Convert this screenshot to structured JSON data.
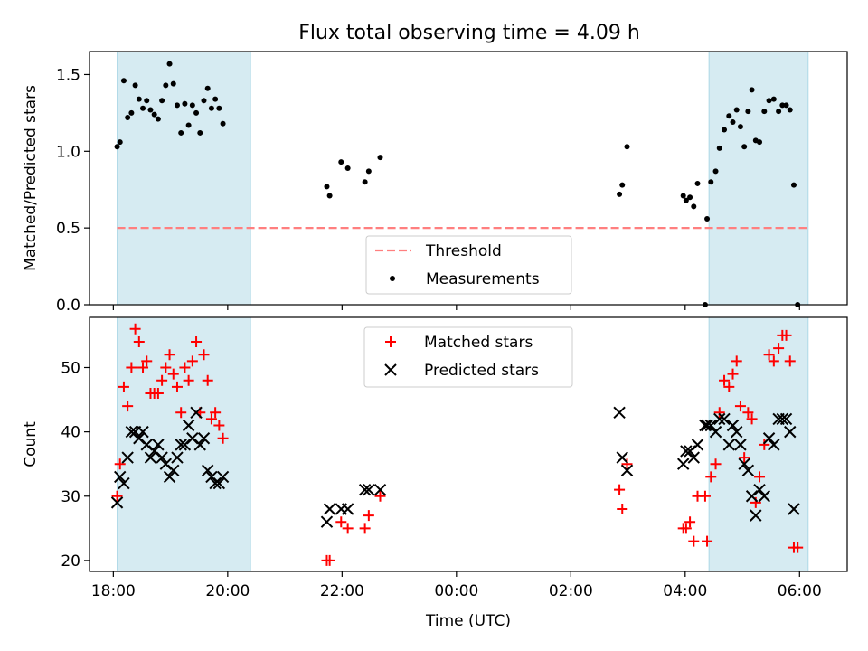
{
  "title": "Flux total observing time = 4.09 h",
  "colors": {
    "shade": "#add8e6",
    "threshold": "#ff7f7f",
    "measurement": "#000000",
    "matched": "#ff0000",
    "predicted": "#000000"
  },
  "chart_data": [
    {
      "type": "scatter",
      "ylabel": "Matched/Predicted stars",
      "ylim": [
        0,
        1.65
      ],
      "yticks": [
        "0.0",
        "0.5",
        "1.0",
        "1.5"
      ],
      "xlim": [
        "17:35",
        "06:50"
      ],
      "grid": false,
      "shaded_intervals": [
        [
          "18:04",
          "20:24"
        ],
        [
          "04:25",
          "06:09"
        ]
      ],
      "legend": {
        "position": "lower-center",
        "entries": [
          "Threshold",
          "Measurements"
        ]
      },
      "threshold": {
        "name": "Threshold",
        "value": 0.5,
        "x_range": [
          "18:04",
          "06:09"
        ],
        "style": "dashed"
      },
      "series": [
        {
          "name": "Measurements",
          "marker": "dot",
          "points": [
            [
              "18:04",
              1.03
            ],
            [
              "18:07",
              1.06
            ],
            [
              "18:11",
              1.46
            ],
            [
              "18:15",
              1.22
            ],
            [
              "18:19",
              1.25
            ],
            [
              "18:23",
              1.43
            ],
            [
              "18:27",
              1.34
            ],
            [
              "18:31",
              1.28
            ],
            [
              "18:35",
              1.33
            ],
            [
              "18:39",
              1.27
            ],
            [
              "18:43",
              1.24
            ],
            [
              "18:47",
              1.21
            ],
            [
              "18:51",
              1.33
            ],
            [
              "18:55",
              1.43
            ],
            [
              "18:59",
              1.57
            ],
            [
              "19:03",
              1.44
            ],
            [
              "19:07",
              1.3
            ],
            [
              "19:11",
              1.12
            ],
            [
              "19:15",
              1.31
            ],
            [
              "19:19",
              1.17
            ],
            [
              "19:23",
              1.3
            ],
            [
              "19:27",
              1.25
            ],
            [
              "19:31",
              1.12
            ],
            [
              "19:35",
              1.33
            ],
            [
              "19:39",
              1.41
            ],
            [
              "19:43",
              1.28
            ],
            [
              "19:47",
              1.34
            ],
            [
              "19:51",
              1.28
            ],
            [
              "19:55",
              1.18
            ],
            [
              "21:44",
              0.77
            ],
            [
              "21:47",
              0.71
            ],
            [
              "21:59",
              0.93
            ],
            [
              "22:06",
              0.89
            ],
            [
              "22:24",
              0.8
            ],
            [
              "22:28",
              0.87
            ],
            [
              "22:40",
              0.96
            ],
            [
              "02:51",
              0.72
            ],
            [
              "02:54",
              0.78
            ],
            [
              "02:59",
              1.03
            ],
            [
              "03:58",
              0.71
            ],
            [
              "04:01",
              0.68
            ],
            [
              "04:05",
              0.7
            ],
            [
              "04:09",
              0.64
            ],
            [
              "04:13",
              0.79
            ],
            [
              "04:21",
              0.0
            ],
            [
              "04:23",
              0.56
            ],
            [
              "04:27",
              0.8
            ],
            [
              "04:32",
              0.87
            ],
            [
              "04:36",
              1.02
            ],
            [
              "04:41",
              1.14
            ],
            [
              "04:46",
              1.23
            ],
            [
              "04:50",
              1.19
            ],
            [
              "04:54",
              1.27
            ],
            [
              "04:58",
              1.16
            ],
            [
              "05:02",
              1.03
            ],
            [
              "05:06",
              1.26
            ],
            [
              "05:10",
              1.4
            ],
            [
              "05:14",
              1.07
            ],
            [
              "05:18",
              1.06
            ],
            [
              "05:23",
              1.26
            ],
            [
              "05:28",
              1.33
            ],
            [
              "05:33",
              1.34
            ],
            [
              "05:38",
              1.26
            ],
            [
              "05:42",
              1.3
            ],
            [
              "05:46",
              1.3
            ],
            [
              "05:50",
              1.27
            ],
            [
              "05:54",
              0.78
            ],
            [
              "05:58",
              0.0
            ]
          ]
        }
      ]
    },
    {
      "type": "scatter",
      "ylabel": "Count",
      "xlabel": "Time (UTC)",
      "ylim": [
        18.3,
        57.8
      ],
      "yticks": [
        "20",
        "30",
        "40",
        "50"
      ],
      "xlim": [
        "17:35",
        "06:50"
      ],
      "xticks": [
        "18:00",
        "20:00",
        "22:00",
        "00:00",
        "02:00",
        "04:00",
        "06:00"
      ],
      "grid": false,
      "shaded_intervals": [
        [
          "18:04",
          "20:24"
        ],
        [
          "04:25",
          "06:09"
        ]
      ],
      "legend": {
        "position": "upper-center",
        "entries": [
          "Matched stars",
          "Predicted stars"
        ]
      },
      "series": [
        {
          "name": "Matched stars",
          "marker": "plus",
          "points": [
            [
              "18:04",
              30
            ],
            [
              "18:07",
              35
            ],
            [
              "18:11",
              47
            ],
            [
              "18:15",
              44
            ],
            [
              "18:19",
              50
            ],
            [
              "18:23",
              56
            ],
            [
              "18:27",
              54
            ],
            [
              "18:31",
              50
            ],
            [
              "18:35",
              51
            ],
            [
              "18:39",
              46
            ],
            [
              "18:43",
              46
            ],
            [
              "18:47",
              46
            ],
            [
              "18:51",
              48
            ],
            [
              "18:55",
              50
            ],
            [
              "18:59",
              52
            ],
            [
              "19:03",
              49
            ],
            [
              "19:07",
              47
            ],
            [
              "19:11",
              43
            ],
            [
              "19:15",
              50
            ],
            [
              "19:19",
              48
            ],
            [
              "19:23",
              51
            ],
            [
              "19:27",
              54
            ],
            [
              "19:31",
              43
            ],
            [
              "19:35",
              52
            ],
            [
              "19:39",
              48
            ],
            [
              "19:43",
              42
            ],
            [
              "19:47",
              43
            ],
            [
              "19:51",
              41
            ],
            [
              "19:55",
              39
            ],
            [
              "21:44",
              20
            ],
            [
              "21:47",
              20
            ],
            [
              "21:59",
              26
            ],
            [
              "22:06",
              25
            ],
            [
              "22:24",
              25
            ],
            [
              "22:28",
              27
            ],
            [
              "22:40",
              30
            ],
            [
              "02:51",
              31
            ],
            [
              "02:54",
              28
            ],
            [
              "02:59",
              35
            ],
            [
              "03:58",
              25
            ],
            [
              "04:01",
              25
            ],
            [
              "04:05",
              26
            ],
            [
              "04:09",
              23
            ],
            [
              "04:13",
              30
            ],
            [
              "04:21",
              30
            ],
            [
              "04:23",
              23
            ],
            [
              "04:27",
              33
            ],
            [
              "04:32",
              35
            ],
            [
              "04:36",
              43
            ],
            [
              "04:41",
              48
            ],
            [
              "04:46",
              47
            ],
            [
              "04:50",
              49
            ],
            [
              "04:54",
              51
            ],
            [
              "04:58",
              44
            ],
            [
              "05:02",
              36
            ],
            [
              "05:06",
              43
            ],
            [
              "05:10",
              42
            ],
            [
              "05:14",
              29
            ],
            [
              "05:18",
              33
            ],
            [
              "05:23",
              38
            ],
            [
              "05:28",
              52
            ],
            [
              "05:33",
              51
            ],
            [
              "05:38",
              53
            ],
            [
              "05:42",
              55
            ],
            [
              "05:46",
              55
            ],
            [
              "05:50",
              51
            ],
            [
              "05:54",
              22
            ],
            [
              "05:58",
              22
            ]
          ]
        },
        {
          "name": "Predicted stars",
          "marker": "x",
          "points": [
            [
              "18:04",
              29
            ],
            [
              "18:07",
              33
            ],
            [
              "18:11",
              32
            ],
            [
              "18:15",
              36
            ],
            [
              "18:19",
              40
            ],
            [
              "18:23",
              40
            ],
            [
              "18:27",
              39
            ],
            [
              "18:31",
              40
            ],
            [
              "18:35",
              38
            ],
            [
              "18:39",
              36
            ],
            [
              "18:43",
              37
            ],
            [
              "18:47",
              38
            ],
            [
              "18:51",
              36
            ],
            [
              "18:55",
              35
            ],
            [
              "18:59",
              33
            ],
            [
              "19:03",
              34
            ],
            [
              "19:07",
              36
            ],
            [
              "19:11",
              38
            ],
            [
              "19:15",
              38
            ],
            [
              "19:19",
              41
            ],
            [
              "19:23",
              39
            ],
            [
              "19:27",
              43
            ],
            [
              "19:31",
              38
            ],
            [
              "19:35",
              39
            ],
            [
              "19:39",
              34
            ],
            [
              "19:43",
              33
            ],
            [
              "19:47",
              32
            ],
            [
              "19:51",
              32
            ],
            [
              "19:55",
              33
            ],
            [
              "21:44",
              26
            ],
            [
              "21:47",
              28
            ],
            [
              "21:59",
              28
            ],
            [
              "22:06",
              28
            ],
            [
              "22:24",
              31
            ],
            [
              "22:28",
              31
            ],
            [
              "22:40",
              31
            ],
            [
              "02:51",
              43
            ],
            [
              "02:54",
              36
            ],
            [
              "02:59",
              34
            ],
            [
              "03:58",
              35
            ],
            [
              "04:01",
              37
            ],
            [
              "04:05",
              37
            ],
            [
              "04:09",
              36
            ],
            [
              "04:13",
              38
            ],
            [
              "04:21",
              41
            ],
            [
              "04:23",
              41
            ],
            [
              "04:27",
              41
            ],
            [
              "04:32",
              40
            ],
            [
              "04:36",
              42
            ],
            [
              "04:41",
              42
            ],
            [
              "04:46",
              38
            ],
            [
              "04:50",
              41
            ],
            [
              "04:54",
              40
            ],
            [
              "04:58",
              38
            ],
            [
              "05:02",
              35
            ],
            [
              "05:06",
              34
            ],
            [
              "05:10",
              30
            ],
            [
              "05:14",
              27
            ],
            [
              "05:18",
              31
            ],
            [
              "05:23",
              30
            ],
            [
              "05:28",
              39
            ],
            [
              "05:33",
              38
            ],
            [
              "05:38",
              42
            ],
            [
              "05:42",
              42
            ],
            [
              "05:46",
              42
            ],
            [
              "05:50",
              40
            ],
            [
              "05:54",
              28
            ]
          ]
        }
      ]
    }
  ]
}
